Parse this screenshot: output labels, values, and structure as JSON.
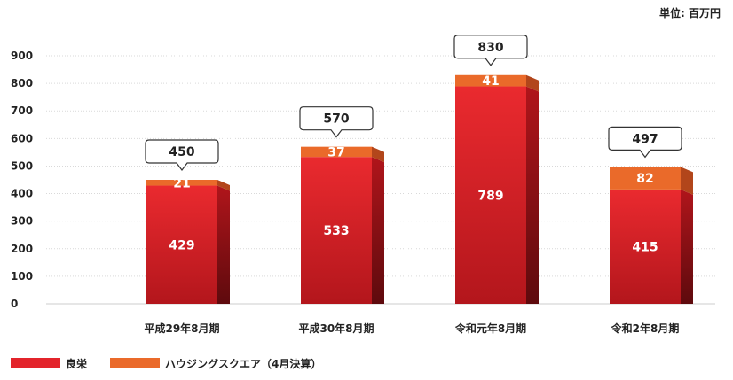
{
  "unit_label": "単位: 百万円",
  "colors": {
    "ryoei": "#e3242b",
    "ryoei_dark": "#8a0f14",
    "housing": "#ea6a2a",
    "housing_dark": "#b2461b",
    "grid": "#d9d9d9",
    "text": "#222222"
  },
  "chart_data": {
    "type": "bar",
    "stacked": true,
    "categories": [
      "平成29年8月期",
      "平成30年8月期",
      "令和元年8月期",
      "令和2年8月期"
    ],
    "series": [
      {
        "name": "良栄",
        "values": [
          429,
          533,
          789,
          415
        ]
      },
      {
        "name": "ハウジングスクエア（4月決算）",
        "values": [
          21,
          37,
          41,
          82
        ]
      }
    ],
    "totals": [
      450,
      570,
      830,
      497
    ],
    "yticks": [
      0,
      100,
      200,
      300,
      400,
      500,
      600,
      700,
      800,
      900
    ],
    "ylim": [
      0,
      900
    ],
    "grid": true,
    "legend_position": "bottom-left"
  }
}
